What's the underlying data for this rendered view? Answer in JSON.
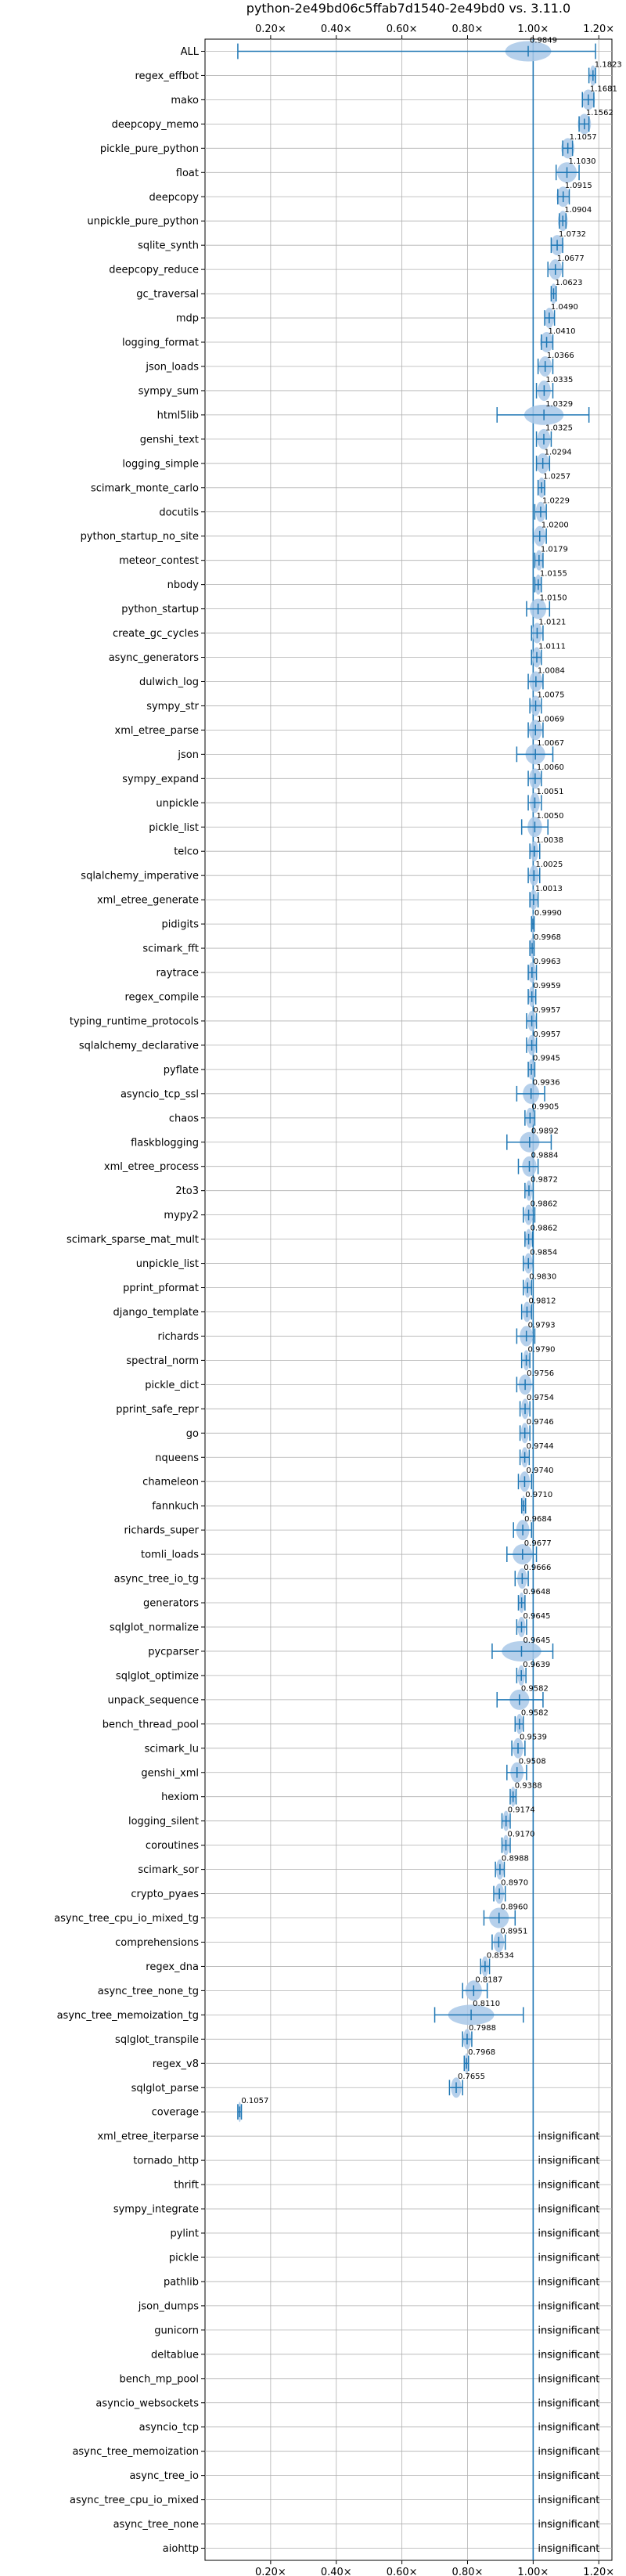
{
  "chart_data": {
    "type": "violin",
    "title": "python-2e49bd06c5ffab7d1540-2e49bd0 vs. 3.11.0",
    "x_ticks": [
      "0.20×",
      "0.40×",
      "0.60×",
      "0.80×",
      "1.00×",
      "1.20×"
    ],
    "x_tick_values": [
      0.2,
      0.4,
      0.6,
      0.8,
      1.0,
      1.2
    ],
    "xlim": [
      0.0,
      1.24
    ],
    "reference_line": 1.0,
    "grid": true,
    "insignificant_text": "insignificant",
    "benchmarks": [
      {
        "name": "ALL",
        "value": 0.9849,
        "label": "0.9849",
        "lo": 0.1,
        "hi": 1.19,
        "w": 0.07
      },
      {
        "name": "regex_effbot",
        "value": 1.1823,
        "label": "1.1823",
        "lo": 1.17,
        "hi": 1.19,
        "w": 0.01
      },
      {
        "name": "mako",
        "value": 1.1681,
        "label": "1.1681",
        "lo": 1.15,
        "hi": 1.185,
        "w": 0.02
      },
      {
        "name": "deepcopy_memo",
        "value": 1.1562,
        "label": "1.1562",
        "lo": 1.14,
        "hi": 1.17,
        "w": 0.02
      },
      {
        "name": "pickle_pure_python",
        "value": 1.1057,
        "label": "1.1057",
        "lo": 1.09,
        "hi": 1.12,
        "w": 0.02
      },
      {
        "name": "float",
        "value": 1.103,
        "label": "1.1030",
        "lo": 1.07,
        "hi": 1.14,
        "w": 0.03
      },
      {
        "name": "deepcopy",
        "value": 1.0915,
        "label": "1.0915",
        "lo": 1.075,
        "hi": 1.11,
        "w": 0.02
      },
      {
        "name": "unpickle_pure_python",
        "value": 1.0904,
        "label": "1.0904",
        "lo": 1.08,
        "hi": 1.1,
        "w": 0.015
      },
      {
        "name": "sqlite_synth",
        "value": 1.0732,
        "label": "1.0732",
        "lo": 1.055,
        "hi": 1.09,
        "w": 0.02
      },
      {
        "name": "deepcopy_reduce",
        "value": 1.0677,
        "label": "1.0677",
        "lo": 1.045,
        "hi": 1.09,
        "w": 0.02
      },
      {
        "name": "gc_traversal",
        "value": 1.0623,
        "label": "1.0623",
        "lo": 1.055,
        "hi": 1.07,
        "w": 0.01
      },
      {
        "name": "mdp",
        "value": 1.049,
        "label": "1.0490",
        "lo": 1.035,
        "hi": 1.065,
        "w": 0.015
      },
      {
        "name": "logging_format",
        "value": 1.041,
        "label": "1.0410",
        "lo": 1.025,
        "hi": 1.06,
        "w": 0.02
      },
      {
        "name": "json_loads",
        "value": 1.0366,
        "label": "1.0366",
        "lo": 1.015,
        "hi": 1.06,
        "w": 0.02
      },
      {
        "name": "sympy_sum",
        "value": 1.0335,
        "label": "1.0335",
        "lo": 1.01,
        "hi": 1.06,
        "w": 0.02
      },
      {
        "name": "html5lib",
        "value": 1.0329,
        "label": "1.0329",
        "lo": 0.89,
        "hi": 1.17,
        "w": 0.06
      },
      {
        "name": "genshi_text",
        "value": 1.0325,
        "label": "1.0325",
        "lo": 1.01,
        "hi": 1.055,
        "w": 0.02
      },
      {
        "name": "logging_simple",
        "value": 1.0294,
        "label": "1.0294",
        "lo": 1.01,
        "hi": 1.05,
        "w": 0.02
      },
      {
        "name": "scimark_monte_carlo",
        "value": 1.0257,
        "label": "1.0257",
        "lo": 1.015,
        "hi": 1.035,
        "w": 0.012
      },
      {
        "name": "docutils",
        "value": 1.0229,
        "label": "1.0229",
        "lo": 1.005,
        "hi": 1.04,
        "w": 0.015
      },
      {
        "name": "python_startup_no_site",
        "value": 1.02,
        "label": "1.0200",
        "lo": 1.0,
        "hi": 1.04,
        "w": 0.018
      },
      {
        "name": "meteor_contest",
        "value": 1.0179,
        "label": "1.0179",
        "lo": 1.005,
        "hi": 1.03,
        "w": 0.012
      },
      {
        "name": "nbody",
        "value": 1.0155,
        "label": "1.0155",
        "lo": 1.005,
        "hi": 1.025,
        "w": 0.01
      },
      {
        "name": "python_startup",
        "value": 1.015,
        "label": "1.0150",
        "lo": 0.98,
        "hi": 1.05,
        "w": 0.025
      },
      {
        "name": "create_gc_cycles",
        "value": 1.0121,
        "label": "1.0121",
        "lo": 0.995,
        "hi": 1.03,
        "w": 0.015
      },
      {
        "name": "async_generators",
        "value": 1.0111,
        "label": "1.0111",
        "lo": 0.995,
        "hi": 1.025,
        "w": 0.013
      },
      {
        "name": "dulwich_log",
        "value": 1.0084,
        "label": "1.0084",
        "lo": 0.985,
        "hi": 1.03,
        "w": 0.02
      },
      {
        "name": "sympy_str",
        "value": 1.0075,
        "label": "1.0075",
        "lo": 0.99,
        "hi": 1.025,
        "w": 0.015
      },
      {
        "name": "xml_etree_parse",
        "value": 1.0069,
        "label": "1.0069",
        "lo": 0.985,
        "hi": 1.03,
        "w": 0.02
      },
      {
        "name": "json",
        "value": 1.0067,
        "label": "1.0067",
        "lo": 0.95,
        "hi": 1.06,
        "w": 0.03
      },
      {
        "name": "sympy_expand",
        "value": 1.006,
        "label": "1.0060",
        "lo": 0.985,
        "hi": 1.025,
        "w": 0.018
      },
      {
        "name": "unpickle",
        "value": 1.0051,
        "label": "1.0051",
        "lo": 0.985,
        "hi": 1.025,
        "w": 0.015
      },
      {
        "name": "pickle_list",
        "value": 1.005,
        "label": "1.0050",
        "lo": 0.965,
        "hi": 1.045,
        "w": 0.022
      },
      {
        "name": "telco",
        "value": 1.0038,
        "label": "1.0038",
        "lo": 0.99,
        "hi": 1.02,
        "w": 0.012
      },
      {
        "name": "sqlalchemy_imperative",
        "value": 1.0025,
        "label": "1.0025",
        "lo": 0.985,
        "hi": 1.02,
        "w": 0.015
      },
      {
        "name": "xml_etree_generate",
        "value": 1.0013,
        "label": "1.0013",
        "lo": 0.99,
        "hi": 1.015,
        "w": 0.012
      },
      {
        "name": "pidigits",
        "value": 0.999,
        "label": "0.9990",
        "lo": 0.995,
        "hi": 1.003,
        "w": 0.006
      },
      {
        "name": "scimark_fft",
        "value": 0.9968,
        "label": "0.9968",
        "lo": 0.99,
        "hi": 1.003,
        "w": 0.008
      },
      {
        "name": "raytrace",
        "value": 0.9963,
        "label": "0.9963",
        "lo": 0.985,
        "hi": 1.01,
        "w": 0.012
      },
      {
        "name": "regex_compile",
        "value": 0.9959,
        "label": "0.9959",
        "lo": 0.985,
        "hi": 1.008,
        "w": 0.01
      },
      {
        "name": "typing_runtime_protocols",
        "value": 0.9957,
        "label": "0.9957",
        "lo": 0.98,
        "hi": 1.01,
        "w": 0.013
      },
      {
        "name": "sqlalchemy_declarative",
        "value": 0.9957,
        "label": "0.9957",
        "lo": 0.98,
        "hi": 1.01,
        "w": 0.013
      },
      {
        "name": "pyflate",
        "value": 0.9945,
        "label": "0.9945",
        "lo": 0.985,
        "hi": 1.005,
        "w": 0.01
      },
      {
        "name": "asyncio_tcp_ssl",
        "value": 0.9936,
        "label": "0.9936",
        "lo": 0.95,
        "hi": 1.035,
        "w": 0.025
      },
      {
        "name": "chaos",
        "value": 0.9905,
        "label": "0.9905",
        "lo": 0.975,
        "hi": 1.005,
        "w": 0.013
      },
      {
        "name": "flaskblogging",
        "value": 0.9892,
        "label": "0.9892",
        "lo": 0.92,
        "hi": 1.055,
        "w": 0.03
      },
      {
        "name": "xml_etree_process",
        "value": 0.9884,
        "label": "0.9884",
        "lo": 0.955,
        "hi": 1.015,
        "w": 0.022
      },
      {
        "name": "2to3",
        "value": 0.9872,
        "label": "0.9872",
        "lo": 0.975,
        "hi": 1.0,
        "w": 0.01
      },
      {
        "name": "mypy2",
        "value": 0.9862,
        "label": "0.9862",
        "lo": 0.97,
        "hi": 1.005,
        "w": 0.013
      },
      {
        "name": "scimark_sparse_mat_mult",
        "value": 0.9862,
        "label": "0.9862",
        "lo": 0.975,
        "hi": 0.998,
        "w": 0.01
      },
      {
        "name": "unpickle_list",
        "value": 0.9854,
        "label": "0.9854",
        "lo": 0.97,
        "hi": 1.0,
        "w": 0.013
      },
      {
        "name": "pprint_pformat",
        "value": 0.983,
        "label": "0.9830",
        "lo": 0.97,
        "hi": 0.995,
        "w": 0.01
      },
      {
        "name": "django_template",
        "value": 0.9812,
        "label": "0.9812",
        "lo": 0.965,
        "hi": 0.995,
        "w": 0.013
      },
      {
        "name": "richards",
        "value": 0.9793,
        "label": "0.9793",
        "lo": 0.95,
        "hi": 1.005,
        "w": 0.02
      },
      {
        "name": "spectral_norm",
        "value": 0.979,
        "label": "0.9790",
        "lo": 0.965,
        "hi": 0.99,
        "w": 0.01
      },
      {
        "name": "pickle_dict",
        "value": 0.9756,
        "label": "0.9756",
        "lo": 0.95,
        "hi": 1.0,
        "w": 0.02
      },
      {
        "name": "pprint_safe_repr",
        "value": 0.9754,
        "label": "0.9754",
        "lo": 0.96,
        "hi": 0.99,
        "w": 0.012
      },
      {
        "name": "go",
        "value": 0.9746,
        "label": "0.9746",
        "lo": 0.96,
        "hi": 0.99,
        "w": 0.012
      },
      {
        "name": "nqueens",
        "value": 0.9744,
        "label": "0.9744",
        "lo": 0.96,
        "hi": 0.988,
        "w": 0.011
      },
      {
        "name": "chameleon",
        "value": 0.974,
        "label": "0.9740",
        "lo": 0.955,
        "hi": 0.995,
        "w": 0.016
      },
      {
        "name": "fannkuch",
        "value": 0.971,
        "label": "0.9710",
        "lo": 0.965,
        "hi": 0.977,
        "w": 0.006
      },
      {
        "name": "richards_super",
        "value": 0.9684,
        "label": "0.9684",
        "lo": 0.94,
        "hi": 0.995,
        "w": 0.02
      },
      {
        "name": "tomli_loads",
        "value": 0.9677,
        "label": "0.9677",
        "lo": 0.92,
        "hi": 1.01,
        "w": 0.03
      },
      {
        "name": "async_tree_io_tg",
        "value": 0.9666,
        "label": "0.9666",
        "lo": 0.945,
        "hi": 0.985,
        "w": 0.015
      },
      {
        "name": "generators",
        "value": 0.9648,
        "label": "0.9648",
        "lo": 0.955,
        "hi": 0.975,
        "w": 0.009
      },
      {
        "name": "sqlglot_normalize",
        "value": 0.9645,
        "label": "0.9645",
        "lo": 0.95,
        "hi": 0.98,
        "w": 0.012
      },
      {
        "name": "pycparser",
        "value": 0.9645,
        "label": "0.9645",
        "lo": 0.875,
        "hi": 1.06,
        "w": 0.06
      },
      {
        "name": "sqlglot_optimize",
        "value": 0.9639,
        "label": "0.9639",
        "lo": 0.95,
        "hi": 0.978,
        "w": 0.011
      },
      {
        "name": "unpack_sequence",
        "value": 0.9582,
        "label": "0.9582",
        "lo": 0.89,
        "hi": 1.03,
        "w": 0.03
      },
      {
        "name": "bench_thread_pool",
        "value": 0.9582,
        "label": "0.9582",
        "lo": 0.945,
        "hi": 0.97,
        "w": 0.011
      },
      {
        "name": "scimark_lu",
        "value": 0.9539,
        "label": "0.9539",
        "lo": 0.935,
        "hi": 0.975,
        "w": 0.016
      },
      {
        "name": "genshi_xml",
        "value": 0.9508,
        "label": "0.9508",
        "lo": 0.92,
        "hi": 0.98,
        "w": 0.02
      },
      {
        "name": "hexiom",
        "value": 0.9388,
        "label": "0.9388",
        "lo": 0.93,
        "hi": 0.948,
        "w": 0.008
      },
      {
        "name": "logging_silent",
        "value": 0.9174,
        "label": "0.9174",
        "lo": 0.905,
        "hi": 0.93,
        "w": 0.01
      },
      {
        "name": "coroutines",
        "value": 0.917,
        "label": "0.9170",
        "lo": 0.905,
        "hi": 0.93,
        "w": 0.01
      },
      {
        "name": "scimark_sor",
        "value": 0.8988,
        "label": "0.8988",
        "lo": 0.885,
        "hi": 0.912,
        "w": 0.012
      },
      {
        "name": "crypto_pyaes",
        "value": 0.897,
        "label": "0.8970",
        "lo": 0.88,
        "hi": 0.915,
        "w": 0.014
      },
      {
        "name": "async_tree_cpu_io_mixed_tg",
        "value": 0.896,
        "label": "0.8960",
        "lo": 0.85,
        "hi": 0.945,
        "w": 0.03
      },
      {
        "name": "comprehensions",
        "value": 0.8951,
        "label": "0.8951",
        "lo": 0.875,
        "hi": 0.915,
        "w": 0.016
      },
      {
        "name": "regex_dna",
        "value": 0.8534,
        "label": "0.8534",
        "lo": 0.84,
        "hi": 0.867,
        "w": 0.011
      },
      {
        "name": "async_tree_none_tg",
        "value": 0.8187,
        "label": "0.8187",
        "lo": 0.785,
        "hi": 0.86,
        "w": 0.025
      },
      {
        "name": "async_tree_memoization_tg",
        "value": 0.811,
        "label": "0.8110",
        "lo": 0.7,
        "hi": 0.97,
        "w": 0.07
      },
      {
        "name": "sqlglot_transpile",
        "value": 0.7988,
        "label": "0.7988",
        "lo": 0.785,
        "hi": 0.813,
        "w": 0.012
      },
      {
        "name": "regex_v8",
        "value": 0.7968,
        "label": "0.7968",
        "lo": 0.79,
        "hi": 0.803,
        "w": 0.006
      },
      {
        "name": "sqlglot_parse",
        "value": 0.7655,
        "label": "0.7655",
        "lo": 0.745,
        "hi": 0.785,
        "w": 0.016
      },
      {
        "name": "coverage",
        "value": 0.1057,
        "label": "0.1057",
        "lo": 0.1,
        "hi": 0.111,
        "w": 0.004
      },
      {
        "name": "xml_etree_iterparse",
        "insignificant": true
      },
      {
        "name": "tornado_http",
        "insignificant": true
      },
      {
        "name": "thrift",
        "insignificant": true
      },
      {
        "name": "sympy_integrate",
        "insignificant": true
      },
      {
        "name": "pylint",
        "insignificant": true
      },
      {
        "name": "pickle",
        "insignificant": true
      },
      {
        "name": "pathlib",
        "insignificant": true
      },
      {
        "name": "json_dumps",
        "insignificant": true
      },
      {
        "name": "gunicorn",
        "insignificant": true
      },
      {
        "name": "deltablue",
        "insignificant": true
      },
      {
        "name": "bench_mp_pool",
        "insignificant": true
      },
      {
        "name": "asyncio_websockets",
        "insignificant": true
      },
      {
        "name": "asyncio_tcp",
        "insignificant": true
      },
      {
        "name": "async_tree_memoization",
        "insignificant": true
      },
      {
        "name": "async_tree_io",
        "insignificant": true
      },
      {
        "name": "async_tree_cpu_io_mixed",
        "insignificant": true
      },
      {
        "name": "async_tree_none",
        "insignificant": true
      },
      {
        "name": "aiohttp",
        "insignificant": true
      }
    ],
    "colors": {
      "violin": "#a9c8e8",
      "marker": "#1f77b4",
      "reference": "#1f77b4",
      "grid": "#b0b0b0"
    }
  }
}
